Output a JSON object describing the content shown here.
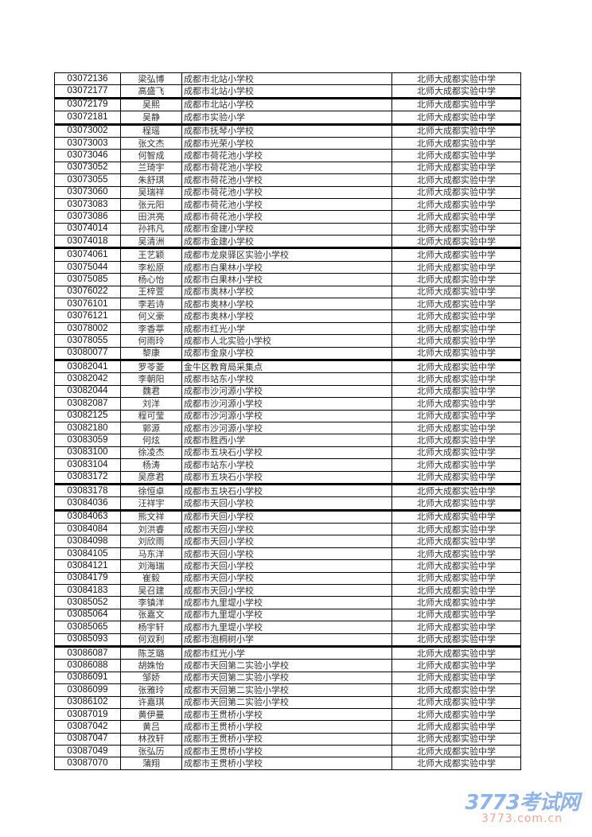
{
  "rows": [
    {
      "id": "03072136",
      "name": "梁弘博",
      "school": "成都市北站小学校",
      "dest": "北师大成都实验中学"
    },
    {
      "id": "03072177",
      "name": "高盛飞",
      "school": "成都市北站小学校",
      "dest": "北师大成都实验中学"
    },
    {
      "id": "03072179",
      "name": "吴熙",
      "school": "成都市北站小学校",
      "dest": "北师大成都实验中学"
    },
    {
      "id": "03072181",
      "name": "吴静",
      "school": "成都市实验小学",
      "dest": "北师大成都实验中学"
    },
    {
      "id": "03073002",
      "name": "程瑶",
      "school": "成都市抚琴小学校",
      "dest": "北师大成都实验中学"
    },
    {
      "id": "03073003",
      "name": "张文杰",
      "school": "成都市光荣小学校",
      "dest": "北师大成都实验中学"
    },
    {
      "id": "03073046",
      "name": "何智成",
      "school": "成都市荷花池小学校",
      "dest": "北师大成都实验中学"
    },
    {
      "id": "03073052",
      "name": "兰琦宇",
      "school": "成都市荷花池小学校",
      "dest": "北师大成都实验中学"
    },
    {
      "id": "03073055",
      "name": "朱舒琪",
      "school": "成都市荷花池小学校",
      "dest": "北师大成都实验中学"
    },
    {
      "id": "03073060",
      "name": "吴瑞祥",
      "school": "成都市荷花池小学校",
      "dest": "北师大成都实验中学"
    },
    {
      "id": "03073083",
      "name": "张元阳",
      "school": "成都市荷花池小学校",
      "dest": "北师大成都实验中学"
    },
    {
      "id": "03073086",
      "name": "田洪亮",
      "school": "成都市荷花池小学校",
      "dest": "北师大成都实验中学"
    },
    {
      "id": "03074014",
      "name": "孙祎凡",
      "school": "成都市金建小学校",
      "dest": "北师大成都实验中学"
    },
    {
      "id": "03074018",
      "name": "吴清洲",
      "school": "成都市金建小学校",
      "dest": "北师大成都实验中学"
    },
    {
      "id": "03074061",
      "name": "王艺颖",
      "school": "成都市龙泉驿区实验小学校",
      "dest": "北师大成都实验中学"
    },
    {
      "id": "03075044",
      "name": "李松原",
      "school": "成都市白果林小学校",
      "dest": "北师大成都实验中学"
    },
    {
      "id": "03075085",
      "name": "杨心怡",
      "school": "成都市白果林小学校",
      "dest": "北师大成都实验中学"
    },
    {
      "id": "03076022",
      "name": "王梓萱",
      "school": "成都市奥林小学校",
      "dest": "北师大成都实验中学"
    },
    {
      "id": "03076101",
      "name": "李若诗",
      "school": "成都市奥林小学校",
      "dest": "北师大成都实验中学"
    },
    {
      "id": "03076121",
      "name": "何义豪",
      "school": "成都市奥林小学校",
      "dest": "北师大成都实验中学"
    },
    {
      "id": "03078002",
      "name": "李香葶",
      "school": "成都市红光小学",
      "dest": "北师大成都实验中学"
    },
    {
      "id": "03078055",
      "name": "何雨玲",
      "school": "成都市人北实验小学校",
      "dest": "北师大成都实验中学"
    },
    {
      "id": "03080077",
      "name": "黎康",
      "school": "成都市金泉小学校",
      "dest": "北师大成都实验中学"
    },
    {
      "id": "03082041",
      "name": "罗苓菱",
      "school": "金牛区教育局采集点",
      "dest": "北师大成都实验中学"
    },
    {
      "id": "03082042",
      "name": "李朝阳",
      "school": "成都市站东小学校",
      "dest": "北师大成都实验中学"
    },
    {
      "id": "03082044",
      "name": "魏君",
      "school": "成都市沙河源小学校",
      "dest": "北师大成都实验中学"
    },
    {
      "id": "03082087",
      "name": "刘洋",
      "school": "成都市沙河源小学校",
      "dest": "北师大成都实验中学"
    },
    {
      "id": "03082125",
      "name": "程可莹",
      "school": "成都市沙河源小学校",
      "dest": "北师大成都实验中学"
    },
    {
      "id": "03082180",
      "name": "郭源",
      "school": "成都市沙河源小学校",
      "dest": "北师大成都实验中学"
    },
    {
      "id": "03083059",
      "name": "何炫",
      "school": "成都市胜西小学",
      "dest": "北师大成都实验中学"
    },
    {
      "id": "03083100",
      "name": "徐凌杰",
      "school": "成都市五块石小学校",
      "dest": "北师大成都实验中学"
    },
    {
      "id": "03083104",
      "name": "杨涛",
      "school": "成都市站东小学校",
      "dest": "北师大成都实验中学"
    },
    {
      "id": "03083172",
      "name": "吴彦君",
      "school": "成都市五块石小学校",
      "dest": "北师大成都实验中学"
    },
    {
      "id": "03083178",
      "name": "徐恒卓",
      "school": "成都市五块石小学校",
      "dest": "北师大成都实验中学"
    },
    {
      "id": "03084036",
      "name": "汪祥宇",
      "school": "成都市天回小学校",
      "dest": "北师大成都实验中学"
    },
    {
      "id": "03084063",
      "name": "熊文祥",
      "school": "成都市天回小学校",
      "dest": "北师大成都实验中学"
    },
    {
      "id": "03084084",
      "name": "刘洪睿",
      "school": "成都市天回小学校",
      "dest": "北师大成都实验中学"
    },
    {
      "id": "03084098",
      "name": "刘欣雨",
      "school": "成都市天回小学校",
      "dest": "北师大成都实验中学"
    },
    {
      "id": "03084105",
      "name": "马东洋",
      "school": "成都市天回小学校",
      "dest": "北师大成都实验中学"
    },
    {
      "id": "03084121",
      "name": "刘海瑞",
      "school": "成都市天回小学校",
      "dest": "北师大成都实验中学"
    },
    {
      "id": "03084179",
      "name": "崔毅",
      "school": "成都市天回小学校",
      "dest": "北师大成都实验中学"
    },
    {
      "id": "03084183",
      "name": "吴召建",
      "school": "成都市天回小学校",
      "dest": "北师大成都实验中学"
    },
    {
      "id": "03085052",
      "name": "李镇洋",
      "school": "成都市九里堤小学校",
      "dest": "北师大成都实验中学"
    },
    {
      "id": "03085064",
      "name": "张嘉文",
      "school": "成都市九里堤小学校",
      "dest": "北师大成都实验中学"
    },
    {
      "id": "03085065",
      "name": "杨宇轩",
      "school": "成都市九里堤小学校",
      "dest": "北师大成都实验中学"
    },
    {
      "id": "03085093",
      "name": "何双利",
      "school": "成都市泡桐树小学",
      "dest": "北师大成都实验中学"
    },
    {
      "id": "03086087",
      "name": "陈芝璐",
      "school": "成都市红光小学",
      "dest": "北师大成都实验中学"
    },
    {
      "id": "03086088",
      "name": "胡姝怡",
      "school": "成都市天回第二实验小学校",
      "dest": "北师大成都实验中学"
    },
    {
      "id": "03086091",
      "name": "邹娇",
      "school": "成都市天回第二实验小学校",
      "dest": "北师大成都实验中学"
    },
    {
      "id": "03086099",
      "name": "张雅玲",
      "school": "成都市天回第二实验小学校",
      "dest": "北师大成都实验中学"
    },
    {
      "id": "03086102",
      "name": "许嘉琪",
      "school": "成都市天回第二实验小学校",
      "dest": "北师大成都实验中学"
    },
    {
      "id": "03087019",
      "name": "黄伊曼",
      "school": "成都市王贯桥小学校",
      "dest": "北师大成都实验中学"
    },
    {
      "id": "03087042",
      "name": "黄吕",
      "school": "成都市王贯桥小学校",
      "dest": "北师大成都实验中学"
    },
    {
      "id": "03087047",
      "name": "林孜轩",
      "school": "成都市王贯桥小学校",
      "dest": "北师大成都实验中学"
    },
    {
      "id": "03087049",
      "name": "张弘历",
      "school": "成都市王贯桥小学校",
      "dest": "北师大成都实验中学"
    },
    {
      "id": "03087070",
      "name": "蒲翔",
      "school": "成都市王贯桥小学校",
      "dest": "北师大成都实验中学"
    }
  ],
  "watermark": {
    "logo_text": "3773考试网",
    "url_text": "3773.com.cn"
  }
}
